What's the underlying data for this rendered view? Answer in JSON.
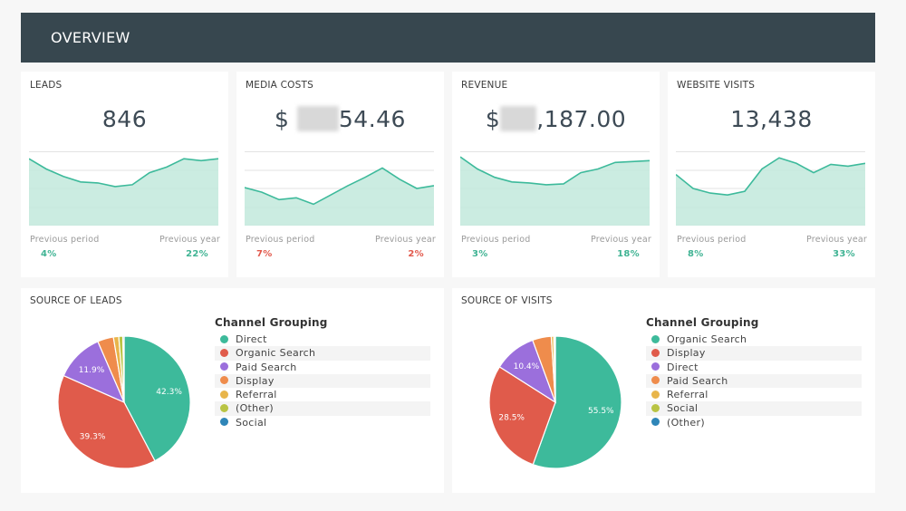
{
  "header": {
    "title": "OVERVIEW"
  },
  "kpis": [
    {
      "label": "LEADS",
      "value_prefix": "",
      "value_suffix": "846",
      "redacted": false,
      "prev_period_label": "Previous period",
      "prev_period": "4%",
      "prev_period_trend": "up",
      "prev_year_label": "Previous year",
      "prev_year": "22%",
      "prev_year_trend": "up"
    },
    {
      "label": "MEDIA COSTS",
      "value_prefix": "$",
      "value_suffix": "54.46",
      "redacted": true,
      "prev_period_label": "Previous period",
      "prev_period": "7%",
      "prev_period_trend": "down",
      "prev_year_label": "Previous year",
      "prev_year": "2%",
      "prev_year_trend": "down"
    },
    {
      "label": "REVENUE",
      "value_prefix": "$",
      "value_suffix": ",187.00",
      "redacted": true,
      "prev_period_label": "Previous period",
      "prev_period": "3%",
      "prev_period_trend": "up",
      "prev_year_label": "Previous year",
      "prev_year": "18%",
      "prev_year_trend": "up"
    },
    {
      "label": "WEBSITE VISITS",
      "value_prefix": "",
      "value_suffix": "13,438",
      "redacted": false,
      "prev_period_label": "Previous period",
      "prev_period": "8%",
      "prev_period_trend": "up",
      "prev_year_label": "Previous year",
      "prev_year": "33%",
      "prev_year_trend": "up"
    }
  ],
  "pies": [
    {
      "title": "SOURCE OF LEADS",
      "legend_title": "Channel Grouping"
    },
    {
      "title": "SOURCE OF VISITS",
      "legend_title": "Channel Grouping"
    }
  ],
  "colors": {
    "teal": "#3dba9b",
    "area": "#c2e9dc",
    "up": "#3fb393",
    "down": "#e2584b"
  },
  "chart_data": [
    {
      "type": "area",
      "title": "LEADS",
      "ylim": [
        0,
        4
      ],
      "grid": true,
      "values": [
        3.6,
        3.05,
        2.65,
        2.35,
        2.3,
        2.1,
        2.2,
        2.85,
        3.15,
        3.6,
        3.5,
        3.6
      ]
    },
    {
      "type": "area",
      "title": "MEDIA COSTS",
      "ylim": [
        0,
        4
      ],
      "grid": true,
      "values": [
        2.05,
        1.8,
        1.4,
        1.5,
        1.15,
        1.65,
        2.15,
        2.6,
        3.1,
        2.5,
        2.0,
        2.15
      ]
    },
    {
      "type": "area",
      "title": "REVENUE",
      "ylim": [
        0,
        4
      ],
      "grid": true,
      "values": [
        3.7,
        3.05,
        2.6,
        2.35,
        2.3,
        2.2,
        2.25,
        2.85,
        3.05,
        3.4,
        3.45,
        3.5
      ]
    },
    {
      "type": "area",
      "title": "WEBSITE VISITS",
      "ylim": [
        0,
        4
      ],
      "grid": true,
      "values": [
        2.75,
        2.0,
        1.75,
        1.65,
        1.85,
        3.05,
        3.65,
        3.35,
        2.85,
        3.3,
        3.2,
        3.35
      ]
    },
    {
      "type": "pie",
      "title": "SOURCE OF LEADS",
      "legend_title": "Channel Grouping",
      "slices": [
        {
          "name": "Direct",
          "value": 42.3,
          "color": "#3dba9b",
          "label": "42.3%"
        },
        {
          "name": "Organic Search",
          "value": 39.3,
          "color": "#e05b4b",
          "label": "39.3%"
        },
        {
          "name": "Paid Search",
          "value": 11.9,
          "color": "#9b6fdc",
          "label": "11.9%"
        },
        {
          "name": "Display",
          "value": 3.9,
          "color": "#ef8c4c",
          "label": ""
        },
        {
          "name": "Referral",
          "value": 1.3,
          "color": "#e8b54a",
          "label": ""
        },
        {
          "name": "(Other)",
          "value": 1.0,
          "color": "#b9c444",
          "label": ""
        },
        {
          "name": "Social",
          "value": 0.3,
          "color": "#2f86b8",
          "label": ""
        }
      ]
    },
    {
      "type": "pie",
      "title": "SOURCE OF VISITS",
      "legend_title": "Channel Grouping",
      "slices": [
        {
          "name": "Organic Search",
          "value": 55.5,
          "color": "#3dba9b",
          "label": "55.5%"
        },
        {
          "name": "Display",
          "value": 28.5,
          "color": "#e05b4b",
          "label": "28.5%"
        },
        {
          "name": "Direct",
          "value": 10.4,
          "color": "#9b6fdc",
          "label": "10.4%"
        },
        {
          "name": "Paid Search",
          "value": 4.6,
          "color": "#ef8c4c",
          "label": ""
        },
        {
          "name": "Referral",
          "value": 0.6,
          "color": "#e8b54a",
          "label": ""
        },
        {
          "name": "Social",
          "value": 0.3,
          "color": "#b9c444",
          "label": ""
        },
        {
          "name": "(Other)",
          "value": 0.1,
          "color": "#2f86b8",
          "label": ""
        }
      ]
    }
  ]
}
